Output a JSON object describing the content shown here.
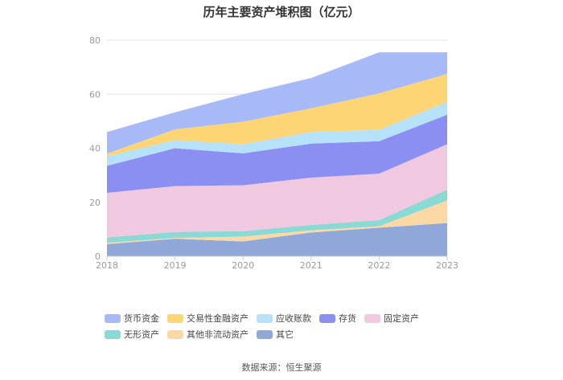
{
  "chart_data": {
    "type": "area",
    "stacked": true,
    "title": "历年主要资产堆积图（亿元）",
    "categories": [
      "2018",
      "2019",
      "2020",
      "2021",
      "2022",
      "2023"
    ],
    "ylim": [
      0,
      80
    ],
    "yticks": [
      0,
      20,
      40,
      60,
      80
    ],
    "legend_position": "bottom",
    "series": [
      {
        "name": "其它",
        "color": "#8fa8d9",
        "values": [
          4.5,
          6.5,
          5.5,
          8.8,
          10.6,
          12.3
        ]
      },
      {
        "name": "其他非流动资产",
        "color": "#fcd9a4",
        "values": [
          0.5,
          0.3,
          1.8,
          0.8,
          0.5,
          8.4
        ]
      },
      {
        "name": "无形资产",
        "color": "#8ad9d4",
        "values": [
          2.0,
          2.2,
          2.0,
          2.0,
          2.3,
          4.0
        ]
      },
      {
        "name": "固定资产",
        "color": "#f0c8e0",
        "values": [
          16.5,
          17.0,
          17.0,
          17.5,
          17.2,
          16.8
        ]
      },
      {
        "name": "存货",
        "color": "#8b8ff2",
        "values": [
          10.0,
          14.0,
          11.8,
          12.6,
          12.0,
          10.9
        ]
      },
      {
        "name": "应收账款",
        "color": "#b5e2f8",
        "values": [
          3.5,
          3.0,
          3.4,
          4.3,
          4.2,
          4.8
        ]
      },
      {
        "name": "交易性金融资产",
        "color": "#fed574",
        "values": [
          1.0,
          4.0,
          8.3,
          8.8,
          13.5,
          10.3
        ]
      },
      {
        "name": "货币资金",
        "color": "#a7baf7",
        "values": [
          8.0,
          6.3,
          10.2,
          11.2,
          15.2,
          8.0
        ]
      }
    ],
    "legend_order": [
      "货币资金",
      "交易性金融资产",
      "应收账款",
      "存货",
      "固定资产",
      "无形资产",
      "其他非流动资产",
      "其它"
    ]
  },
  "source": "数据来源：恒生聚源"
}
